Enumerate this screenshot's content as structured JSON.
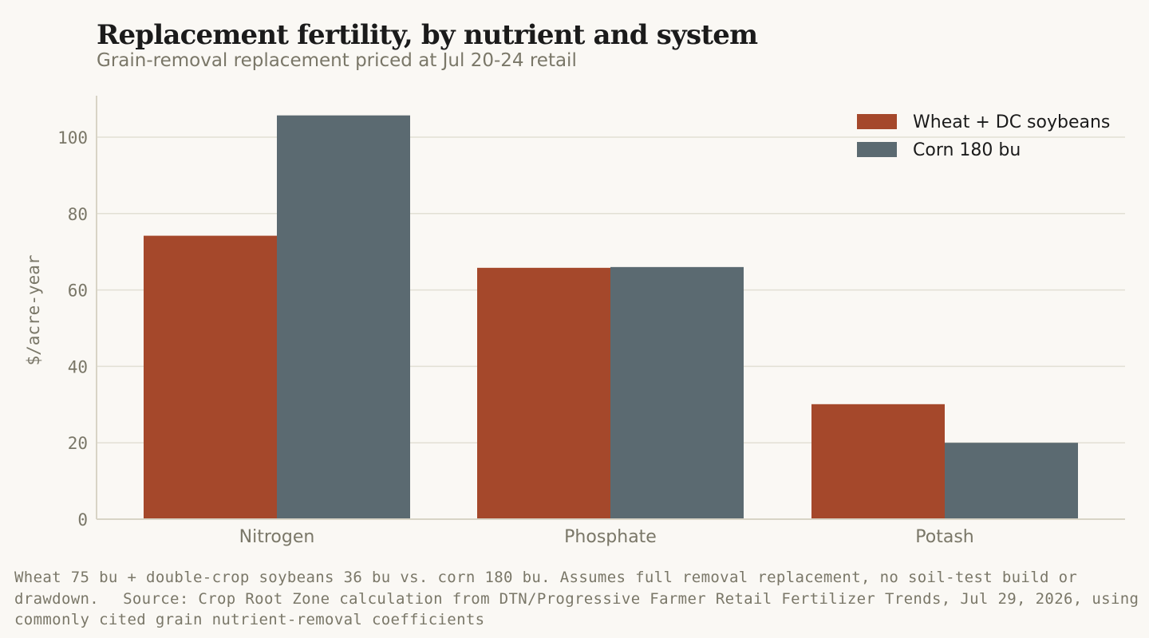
{
  "header": {
    "title": "Replacement fertility, by nutrient and system",
    "subtitle": "Grain-removal replacement priced at Jul 20-24 retail"
  },
  "footer": {
    "note": "Wheat 75 bu + double-crop soybeans 36 bu vs. corn 180 bu. Assumes full removal replacement, no soil-test build or drawdown.",
    "source": "Source: Crop Root Zone calculation from DTN/Progressive Farmer Retail Fertilizer Trends, Jul 29, 2026, using commonly cited grain nutrient-removal coefficients"
  },
  "colors": {
    "background": "#faf8f4",
    "wheat": "#a5482b",
    "corn": "#5b6a71",
    "grid": "#e2dfd4",
    "axis": "#d8d4c6",
    "muted_text": "#7a7768"
  },
  "chart_data": {
    "type": "bar",
    "categories": [
      "Nitrogen",
      "Phosphate",
      "Potash"
    ],
    "series": [
      {
        "name": "Wheat + DC soybeans",
        "values": [
          74.2,
          65.8,
          30.1
        ]
      },
      {
        "name": "Corn 180 bu",
        "values": [
          105.7,
          66.0,
          20.0
        ]
      }
    ],
    "ylabel": "$/acre-year",
    "ylim": [
      0,
      111
    ],
    "yticks": [
      0,
      20,
      40,
      60,
      80,
      100
    ],
    "grid": true,
    "legend_position": "top-right"
  }
}
